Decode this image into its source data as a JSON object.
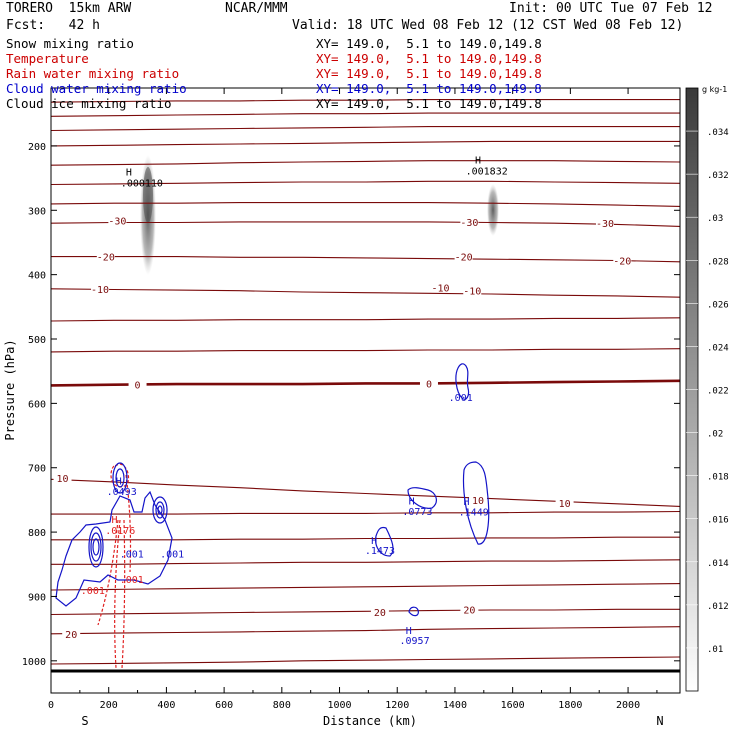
{
  "header": {
    "model": "TORERO  15km ARW",
    "source": "NCAR/MMM",
    "init": "Init: 00 UTC Tue 07 Feb 12",
    "fcst": "Fcst:   42 h",
    "valid": "Valid: 18 UTC Wed 08 Feb 12 (12 CST Wed 08 Feb 12)"
  },
  "fields": [
    {
      "name": "Snow mixing ratio",
      "xy": "XY= 149.0,  5.1 to 149.0,149.8",
      "color": "#000000"
    },
    {
      "name": "Temperature",
      "xy": "XY= 149.0,  5.1 to 149.0,149.8",
      "color": "#cc0000"
    },
    {
      "name": "Rain water mixing ratio",
      "xy": "XY= 149.0,  5.1 to 149.0,149.8",
      "color": "#cc0000"
    },
    {
      "name": "Cloud water mixing ratio",
      "xy": "XY= 149.0,  5.1 to 149.0,149.8",
      "color": "#0000cc"
    },
    {
      "name": "Cloud ice mixing ratio",
      "xy": "XY= 149.0,  5.1 to 149.0,149.8",
      "color": "#000000"
    }
  ],
  "colors": {
    "temperature": "#7a0a0a",
    "rain": "#e02020",
    "cloud_water": "#1414c8",
    "axis": "#000000"
  },
  "chart_data": {
    "type": "cross-section contour",
    "xlabel": "Distance (km)",
    "ylabel": "Pressure (hPa)",
    "xlim": [
      0,
      2180
    ],
    "ylim": [
      1050,
      110
    ],
    "x_ticks": [
      0,
      200,
      400,
      600,
      800,
      1000,
      1200,
      1400,
      1600,
      1800,
      2000
    ],
    "y_ticks": [
      200,
      300,
      400,
      500,
      600,
      700,
      800,
      900,
      1000
    ],
    "end_labels": {
      "left": "S",
      "right": "N"
    },
    "colorbar": {
      "unit": "g kg-1",
      "ticks": [
        ".01",
        ".012",
        ".014",
        ".016",
        ".018",
        ".02",
        ".022",
        ".024",
        ".026",
        ".028",
        ".03",
        ".032",
        ".034"
      ]
    },
    "temperature_lines": [
      {
        "y": [
          1005,
          1004,
          1003,
          1002,
          1000,
          999,
          998,
          997,
          996,
          995,
          994
        ],
        "bold": false
      },
      {
        "y": [
          958,
          957,
          956,
          955,
          954,
          953,
          951,
          950,
          949,
          948,
          947
        ],
        "bold": false
      },
      {
        "y": [
          928,
          927,
          926,
          925,
          924,
          923,
          922,
          921,
          921,
          920,
          920
        ],
        "bold": false
      },
      {
        "y": [
          890,
          889,
          888,
          887,
          886,
          885,
          884,
          883,
          882,
          881,
          880
        ],
        "bold": false
      },
      {
        "y": [
          850,
          850,
          849,
          848,
          847,
          847,
          846,
          845,
          845,
          844,
          843
        ],
        "bold": false
      },
      {
        "y": [
          812,
          812,
          812,
          811,
          811,
          810,
          810,
          809,
          809,
          808,
          808
        ],
        "bold": false
      },
      {
        "y": [
          772,
          772,
          772,
          771,
          771,
          771,
          770,
          770,
          769,
          769,
          768
        ],
        "bold": false
      },
      {
        "y": [
          718,
          722,
          727,
          731,
          736,
          740,
          744,
          748,
          752,
          756,
          760
        ],
        "bold": false
      },
      {
        "y": [
          572,
          571,
          570,
          570,
          570,
          569,
          569,
          568,
          567,
          566,
          565
        ],
        "bold": true
      },
      {
        "y": [
          520,
          519,
          519,
          518,
          518,
          518,
          517,
          517,
          516,
          516,
          515
        ],
        "bold": false
      },
      {
        "y": [
          472,
          471,
          471,
          470,
          470,
          470,
          469,
          469,
          468,
          468,
          467
        ],
        "bold": false
      },
      {
        "y": [
          422,
          423,
          424,
          425,
          427,
          428,
          429,
          430,
          432,
          433,
          435
        ],
        "bold": false
      },
      {
        "y": [
          372,
          372,
          372,
          373,
          373,
          374,
          375,
          376,
          377,
          378,
          380
        ],
        "bold": false
      },
      {
        "y": [
          320,
          319,
          319,
          318,
          318,
          318,
          318,
          319,
          320,
          322,
          325
        ],
        "bold": false
      },
      {
        "y": [
          290,
          289,
          289,
          288,
          288,
          288,
          288,
          289,
          290,
          292,
          294
        ],
        "bold": false
      },
      {
        "y": [
          260,
          259,
          258,
          257,
          256,
          256,
          255,
          255,
          256,
          257,
          258
        ],
        "bold": false
      },
      {
        "y": [
          230,
          229,
          228,
          226,
          225,
          224,
          223,
          223,
          223,
          224,
          225
        ],
        "bold": false
      },
      {
        "y": [
          200,
          199,
          198,
          197,
          196,
          195,
          194,
          193,
          193,
          193,
          193
        ],
        "bold": false
      },
      {
        "y": [
          176,
          175,
          174,
          173,
          172,
          171,
          170,
          170,
          170,
          170,
          170
        ],
        "bold": false
      },
      {
        "y": [
          154,
          153,
          152,
          151,
          150,
          150,
          149,
          149,
          149,
          149,
          149
        ],
        "bold": false
      },
      {
        "y": [
          132,
          131,
          130,
          130,
          129,
          129,
          128,
          128,
          128,
          128,
          128
        ],
        "bold": false
      }
    ],
    "temperature_labels": [
      {
        "text": "-30",
        "x": 230,
        "p": 316
      },
      {
        "text": "-30",
        "x": 1450,
        "p": 318
      },
      {
        "text": "-30",
        "x": 1920,
        "p": 320
      },
      {
        "text": "-20",
        "x": 190,
        "p": 372
      },
      {
        "text": "-20",
        "x": 1430,
        "p": 372
      },
      {
        "text": "-20",
        "x": 1980,
        "p": 378
      },
      {
        "text": "-10",
        "x": 170,
        "p": 422
      },
      {
        "text": "-10",
        "x": 1350,
        "p": 420
      },
      {
        "text": "-10",
        "x": 1460,
        "p": 425
      },
      {
        "text": "0",
        "x": 300,
        "p": 571
      },
      {
        "text": "0",
        "x": 1310,
        "p": 569
      },
      {
        "text": "10",
        "x": 40,
        "p": 716
      },
      {
        "text": "10",
        "x": 1480,
        "p": 750
      },
      {
        "text": "10",
        "x": 1780,
        "p": 755
      },
      {
        "text": "20",
        "x": 1140,
        "p": 924
      },
      {
        "text": "20",
        "x": 1450,
        "p": 920
      },
      {
        "text": "20",
        "x": 70,
        "p": 958
      }
    ],
    "annotations": [
      {
        "text": "H",
        "x": 270,
        "p": 240,
        "color": "#000000"
      },
      {
        "text": ".000110",
        "x": 315,
        "p": 257,
        "color": "#000000"
      },
      {
        "text": "H",
        "x": 1480,
        "p": 221,
        "color": "#000000"
      },
      {
        "text": ".001832",
        "x": 1510,
        "p": 238,
        "color": "#000000"
      },
      {
        "text": ".001",
        "x": 1420,
        "p": 590,
        "color": "#1414c8"
      },
      {
        "text": "H",
        "x": 235,
        "p": 720,
        "color": "#1414c8"
      },
      {
        "text": ".0493",
        "x": 245,
        "p": 736,
        "color": "#1414c8"
      },
      {
        "text": "H",
        "x": 1250,
        "p": 751,
        "color": "#1414c8"
      },
      {
        "text": ".0773",
        "x": 1270,
        "p": 767,
        "color": "#1414c8"
      },
      {
        "text": "H",
        "x": 1440,
        "p": 752,
        "color": "#1414c8"
      },
      {
        "text": ".1449",
        "x": 1465,
        "p": 768,
        "color": "#1414c8"
      },
      {
        "text": "H",
        "x": 220,
        "p": 780,
        "color": "#e02020"
      },
      {
        "text": ".0176",
        "x": 240,
        "p": 797,
        "color": "#e02020"
      },
      {
        "text": ".001",
        "x": 280,
        "p": 833,
        "color": "#1414c8"
      },
      {
        "text": ".001",
        "x": 420,
        "p": 833,
        "color": "#1414c8"
      },
      {
        "text": ".001",
        "x": 280,
        "p": 873,
        "color": "#e02020"
      },
      {
        "text": "H",
        "x": 1120,
        "p": 812,
        "color": "#1414c8"
      },
      {
        "text": ".1473",
        "x": 1140,
        "p": 828,
        "color": "#1414c8"
      },
      {
        "text": ".001",
        "x": 145,
        "p": 890,
        "color": "#e02020"
      },
      {
        "text": "H",
        "x": 1240,
        "p": 952,
        "color": "#1414c8"
      },
      {
        "text": ".0957",
        "x": 1260,
        "p": 968,
        "color": "#1414c8"
      }
    ]
  }
}
